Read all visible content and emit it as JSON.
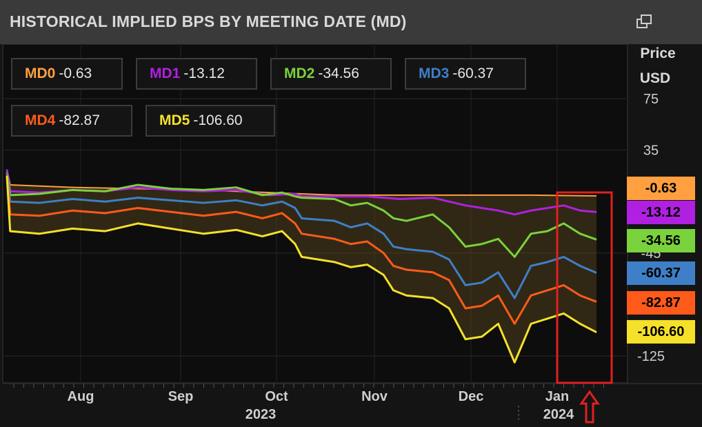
{
  "header": {
    "title": "HISTORICAL IMPLIED BPS BY MEETING DATE (MD)",
    "popout_icon": "popout-window-icon"
  },
  "y_axis": {
    "title_line1": "Price",
    "title_line2": "USD",
    "ticks": [
      "75",
      "35",
      "-45",
      "-125"
    ]
  },
  "x_axis": {
    "months": [
      "Aug",
      "Sep",
      "Oct",
      "Nov",
      "Dec",
      "Jan"
    ],
    "years": [
      "2023",
      "2024"
    ]
  },
  "legend": [
    {
      "label": "MD0",
      "value": "-0.63",
      "color": "#ff9f3f"
    },
    {
      "label": "MD1",
      "value": "-13.12",
      "color": "#b020e0"
    },
    {
      "label": "MD2",
      "value": "-34.56",
      "color": "#7ad23c"
    },
    {
      "label": "MD3",
      "value": "-60.37",
      "color": "#3f7fc8"
    },
    {
      "label": "MD4",
      "value": "-82.87",
      "color": "#ff5a1a"
    },
    {
      "label": "MD5",
      "value": "-106.60",
      "color": "#f5e02a"
    }
  ],
  "badges": [
    "-0.63",
    "-13.12",
    "-34.56",
    "-60.37",
    "-82.87",
    "-106.60"
  ],
  "annotation": {
    "highlight_color": "#e02020",
    "arrow": "up-arrow-icon"
  },
  "chart_data": {
    "type": "line",
    "xlabel": "",
    "ylabel": "Price USD",
    "ylim": [
      -135,
      90
    ],
    "y_ticks": [
      75,
      35,
      -45,
      -125
    ],
    "grid": true,
    "legend_position": "top-left",
    "last_values": {
      "MD0": -0.63,
      "MD1": -13.12,
      "MD2": -34.56,
      "MD3": -60.37,
      "MD4": -82.87,
      "MD5": -106.6
    },
    "series": [
      {
        "name": "MD0",
        "color": "#ff9f3f",
        "points": [
          [
            0,
            20
          ],
          [
            1,
            8
          ],
          [
            20,
            6
          ],
          [
            40,
            5
          ],
          [
            60,
            4
          ],
          [
            80,
            2
          ],
          [
            100,
            0
          ],
          [
            120,
            0
          ],
          [
            140,
            0
          ],
          [
            160,
            0
          ],
          [
            180,
            -0.63
          ]
        ]
      },
      {
        "name": "MD1",
        "color": "#b020e0",
        "points": [
          [
            0,
            20
          ],
          [
            1,
            3
          ],
          [
            10,
            2
          ],
          [
            20,
            4
          ],
          [
            30,
            3
          ],
          [
            40,
            6
          ],
          [
            50,
            4
          ],
          [
            60,
            3
          ],
          [
            70,
            4
          ],
          [
            80,
            0
          ],
          [
            88,
            1
          ],
          [
            90,
            -1
          ],
          [
            100,
            -1
          ],
          [
            110,
            -1
          ],
          [
            120,
            -3
          ],
          [
            130,
            -2
          ],
          [
            140,
            -8
          ],
          [
            150,
            -12
          ],
          [
            155,
            -15
          ],
          [
            160,
            -12
          ],
          [
            170,
            -8
          ],
          [
            175,
            -12
          ],
          [
            180,
            -13.12
          ]
        ]
      },
      {
        "name": "MD2",
        "color": "#7ad23c",
        "points": [
          [
            0,
            18
          ],
          [
            1,
            0
          ],
          [
            10,
            1
          ],
          [
            20,
            4
          ],
          [
            30,
            3
          ],
          [
            40,
            8
          ],
          [
            50,
            5
          ],
          [
            60,
            4
          ],
          [
            70,
            6
          ],
          [
            78,
            0
          ],
          [
            84,
            2
          ],
          [
            88,
            -1
          ],
          [
            90,
            -2
          ],
          [
            100,
            -3
          ],
          [
            105,
            -8
          ],
          [
            110,
            -6
          ],
          [
            115,
            -12
          ],
          [
            118,
            -18
          ],
          [
            122,
            -20
          ],
          [
            130,
            -15
          ],
          [
            135,
            -25
          ],
          [
            140,
            -40
          ],
          [
            145,
            -38
          ],
          [
            150,
            -34
          ],
          [
            155,
            -48
          ],
          [
            160,
            -30
          ],
          [
            165,
            -28
          ],
          [
            170,
            -22
          ],
          [
            175,
            -30
          ],
          [
            180,
            -34.56
          ]
        ]
      },
      {
        "name": "MD3",
        "color": "#3f7fc8",
        "points": [
          [
            0,
            18
          ],
          [
            1,
            -5
          ],
          [
            10,
            -6
          ],
          [
            20,
            -3
          ],
          [
            30,
            -5
          ],
          [
            40,
            -2
          ],
          [
            50,
            -4
          ],
          [
            60,
            -6
          ],
          [
            70,
            -4
          ],
          [
            78,
            -8
          ],
          [
            84,
            -5
          ],
          [
            88,
            -10
          ],
          [
            90,
            -18
          ],
          [
            100,
            -20
          ],
          [
            105,
            -25
          ],
          [
            110,
            -22
          ],
          [
            115,
            -30
          ],
          [
            118,
            -40
          ],
          [
            122,
            -42
          ],
          [
            130,
            -44
          ],
          [
            135,
            -50
          ],
          [
            140,
            -70
          ],
          [
            145,
            -68
          ],
          [
            150,
            -60
          ],
          [
            155,
            -80
          ],
          [
            160,
            -55
          ],
          [
            165,
            -52
          ],
          [
            170,
            -48
          ],
          [
            175,
            -55
          ],
          [
            180,
            -60.37
          ]
        ]
      },
      {
        "name": "MD4",
        "color": "#ff5a1a",
        "points": [
          [
            0,
            16
          ],
          [
            1,
            -15
          ],
          [
            10,
            -16
          ],
          [
            20,
            -12
          ],
          [
            30,
            -14
          ],
          [
            40,
            -10
          ],
          [
            50,
            -13
          ],
          [
            60,
            -16
          ],
          [
            70,
            -13
          ],
          [
            78,
            -18
          ],
          [
            84,
            -14
          ],
          [
            88,
            -22
          ],
          [
            90,
            -30
          ],
          [
            100,
            -34
          ],
          [
            105,
            -38
          ],
          [
            110,
            -36
          ],
          [
            115,
            -45
          ],
          [
            118,
            -55
          ],
          [
            122,
            -58
          ],
          [
            130,
            -60
          ],
          [
            135,
            -66
          ],
          [
            140,
            -88
          ],
          [
            145,
            -86
          ],
          [
            150,
            -78
          ],
          [
            155,
            -100
          ],
          [
            160,
            -78
          ],
          [
            165,
            -74
          ],
          [
            170,
            -70
          ],
          [
            175,
            -78
          ],
          [
            180,
            -82.87
          ]
        ]
      },
      {
        "name": "MD5",
        "color": "#f5e02a",
        "points": [
          [
            0,
            15
          ],
          [
            1,
            -28
          ],
          [
            10,
            -30
          ],
          [
            20,
            -26
          ],
          [
            30,
            -28
          ],
          [
            40,
            -22
          ],
          [
            50,
            -26
          ],
          [
            60,
            -30
          ],
          [
            70,
            -27
          ],
          [
            78,
            -32
          ],
          [
            84,
            -28
          ],
          [
            88,
            -38
          ],
          [
            90,
            -48
          ],
          [
            100,
            -52
          ],
          [
            105,
            -56
          ],
          [
            110,
            -54
          ],
          [
            115,
            -62
          ],
          [
            118,
            -74
          ],
          [
            122,
            -78
          ],
          [
            130,
            -80
          ],
          [
            135,
            -88
          ],
          [
            140,
            -112
          ],
          [
            145,
            -110
          ],
          [
            150,
            -100
          ],
          [
            155,
            -130
          ],
          [
            160,
            -100
          ],
          [
            165,
            -96
          ],
          [
            170,
            -92
          ],
          [
            175,
            -100
          ],
          [
            180,
            -106.6
          ]
        ]
      }
    ]
  }
}
